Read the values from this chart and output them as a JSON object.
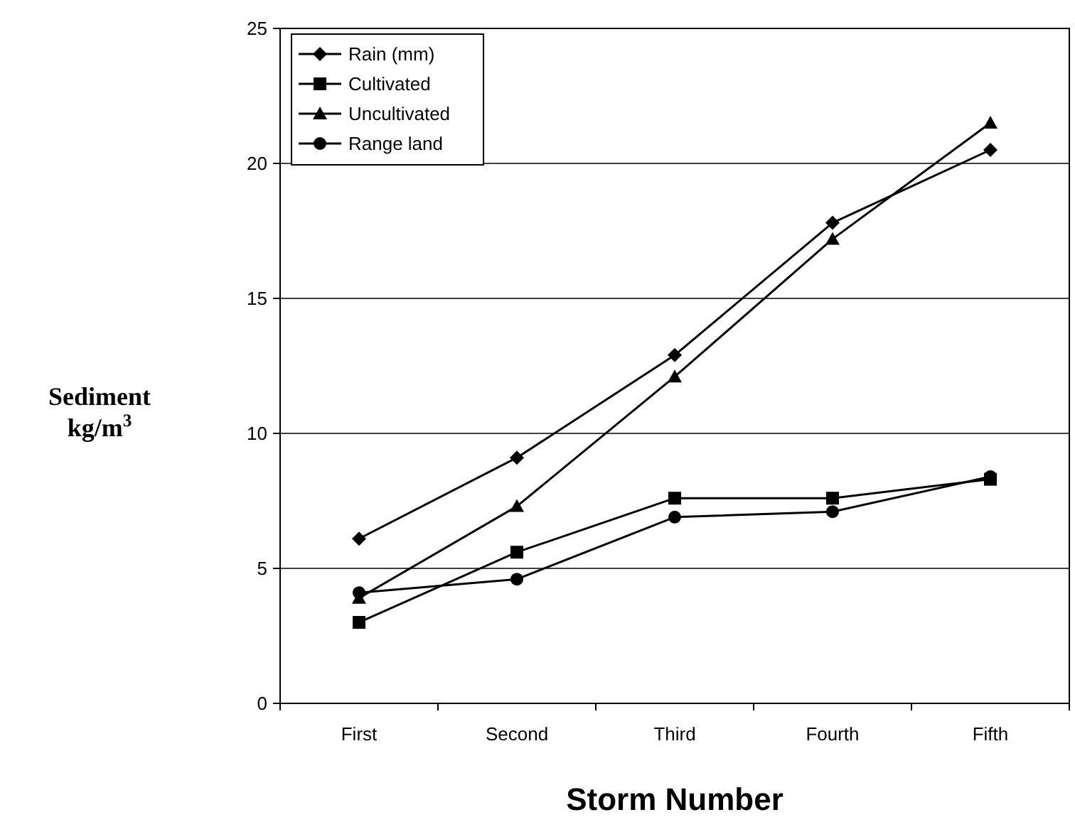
{
  "chart_data": {
    "type": "line",
    "xlabel": "Storm Number",
    "ylabel": "Sediment kg/m$^{3}$",
    "categories": [
      "First",
      "Second",
      "Third",
      "Fourth",
      "Fifth"
    ],
    "series": [
      {
        "name": "Rain (mm)",
        "color": "#000000",
        "marker": "diamond",
        "values": [
          6.1,
          9.1,
          12.9,
          17.8,
          20.5
        ]
      },
      {
        "name": "Cultivated",
        "color": "#000000",
        "marker": "square",
        "values": [
          3.0,
          5.6,
          7.6,
          7.6,
          8.3
        ]
      },
      {
        "name": "Uncultivated",
        "color": "#000000",
        "marker": "triangle",
        "values": [
          3.9,
          7.3,
          12.1,
          17.2,
          21.5
        ]
      },
      {
        "name": "Range land",
        "color": "#000000",
        "marker": "circle",
        "values": [
          4.1,
          4.6,
          6.9,
          7.1,
          8.4
        ]
      }
    ],
    "ylim": [
      0,
      25
    ],
    "yticks": [
      0,
      5,
      10,
      15,
      20,
      25
    ],
    "grid": "y",
    "legend": "top left",
    "line_style": "solid"
  }
}
